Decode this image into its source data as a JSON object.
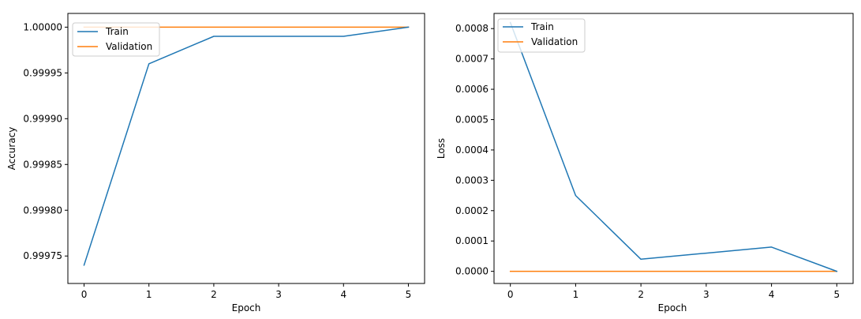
{
  "chart_data": [
    {
      "type": "line",
      "xlabel": "Epoch",
      "ylabel": "Accuracy",
      "x": [
        0,
        1,
        2,
        3,
        4,
        5
      ],
      "xlim": [
        -0.25,
        5.25
      ],
      "ylim": [
        0.99972,
        1.000015
      ],
      "xticks": [
        0,
        1,
        2,
        3,
        4,
        5
      ],
      "yticks": [
        0.99975,
        0.9998,
        0.99985,
        0.9999,
        0.99995,
        1.0
      ],
      "yticklabels": [
        "0.99975",
        "0.99980",
        "0.99985",
        "0.99990",
        "0.99995",
        "1.00000"
      ],
      "grid": false,
      "legend_position": "top-left",
      "series": [
        {
          "name": "Train",
          "color": "#1f77b4",
          "values": [
            0.99974,
            0.99996,
            0.99999,
            0.99999,
            0.99999,
            1.0
          ]
        },
        {
          "name": "Validation",
          "color": "#ff7f0e",
          "values": [
            1.0,
            1.0,
            1.0,
            1.0,
            1.0,
            1.0
          ]
        }
      ]
    },
    {
      "type": "line",
      "xlabel": "Epoch",
      "ylabel": "Loss",
      "x": [
        0,
        1,
        2,
        3,
        4,
        5
      ],
      "xlim": [
        -0.25,
        5.25
      ],
      "ylim": [
        -4e-05,
        0.00085
      ],
      "xticks": [
        0,
        1,
        2,
        3,
        4,
        5
      ],
      "yticks": [
        0.0,
        0.0001,
        0.0002,
        0.0003,
        0.0004,
        0.0005,
        0.0006,
        0.0007,
        0.0008
      ],
      "yticklabels": [
        "0.0000",
        "0.0001",
        "0.0002",
        "0.0003",
        "0.0004",
        "0.0005",
        "0.0006",
        "0.0007",
        "0.0008"
      ],
      "grid": false,
      "legend_position": "top-left",
      "series": [
        {
          "name": "Train",
          "color": "#1f77b4",
          "values": [
            0.00082,
            0.00025,
            4e-05,
            6e-05,
            8e-05,
            0.0
          ]
        },
        {
          "name": "Validation",
          "color": "#ff7f0e",
          "values": [
            0.0,
            0.0,
            0.0,
            0.0,
            0.0,
            0.0
          ]
        }
      ]
    }
  ]
}
